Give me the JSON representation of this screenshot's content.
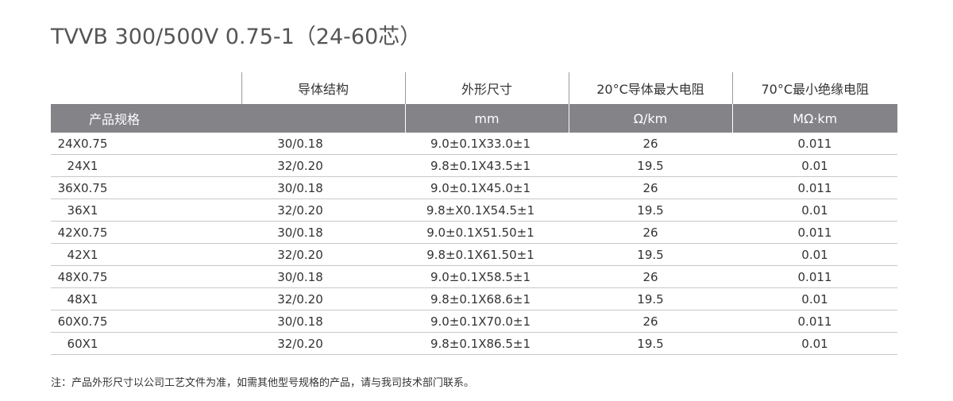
{
  "title": "TVVB 300/500V 0.75-1（24-60芯）",
  "table": {
    "headers_top": [
      "",
      "导体结构",
      "外形尺寸",
      "20°C导体最大电阻",
      "70°C最小绝缘电阻"
    ],
    "headers_sub": [
      "产品规格",
      "",
      "mm",
      "Ω/km",
      "MΩ·km"
    ],
    "rows": [
      [
        "24X0.75",
        "30/0.18",
        "9.0±0.1X33.0±1",
        "26",
        "0.011"
      ],
      [
        "24X1",
        "32/0.20",
        "9.8±0.1X43.5±1",
        "19.5",
        "0.01"
      ],
      [
        "36X0.75",
        "30/0.18",
        "9.0±0.1X45.0±1",
        "26",
        "0.011"
      ],
      [
        "36X1",
        "32/0.20",
        "9.8±X0.1X54.5±1",
        "19.5",
        "0.01"
      ],
      [
        "42X0.75",
        "30/0.18",
        "9.0±0.1X51.50±1",
        "26",
        "0.011"
      ],
      [
        "42X1",
        "32/0.20",
        "9.8±0.1X61.50±1",
        "19.5",
        "0.01"
      ],
      [
        "48X0.75",
        "30/0.18",
        "9.0±0.1X58.5±1",
        "26",
        "0.011"
      ],
      [
        "48X1",
        "32/0.20",
        "9.8±0.1X68.6±1",
        "19.5",
        "0.01"
      ],
      [
        "60X0.75",
        "30/0.18",
        "9.0±0.1X70.0±1",
        "26",
        "0.011"
      ],
      [
        "60X1",
        "32/0.20",
        "9.8±0.1X86.5±1",
        "19.5",
        "0.01"
      ]
    ]
  },
  "note": "注：产品外形尺寸以公司工艺文件为准，如需其他型号规格的产品，请与我司技术部门联系。"
}
